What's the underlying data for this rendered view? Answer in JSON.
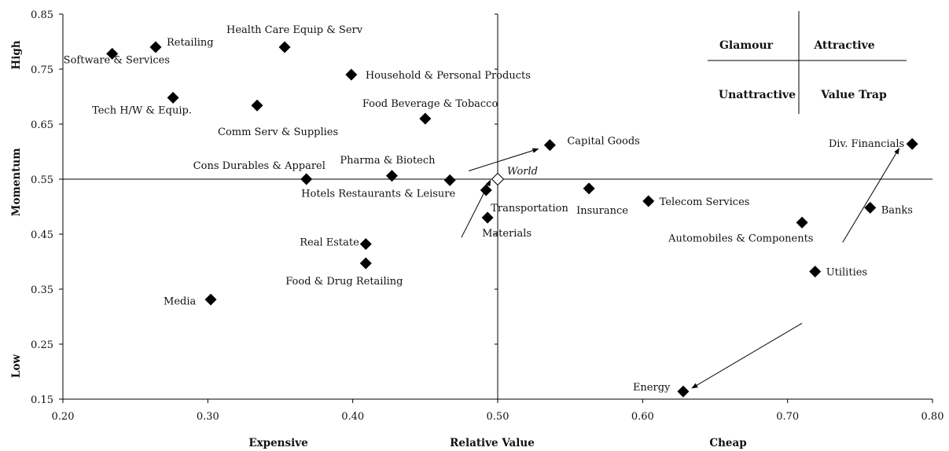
{
  "chart_data": {
    "type": "scatter",
    "xlim": [
      0.2,
      0.8
    ],
    "ylim": [
      0.15,
      0.85
    ],
    "x_ticks": [
      "0.20",
      "0.30",
      "0.40",
      "0.50",
      "0.60",
      "0.70",
      "0.80"
    ],
    "y_ticks": [
      "0.15",
      "0.25",
      "0.35",
      "0.45",
      "0.55",
      "0.65",
      "0.75",
      "0.85"
    ],
    "x_axis_words": {
      "left": "Expensive",
      "center": "Relative Value",
      "right": "Cheap"
    },
    "y_axis_words": {
      "top": "High",
      "center": "Momentum",
      "bottom": "Low"
    },
    "reference_lines": {
      "x": 0.5,
      "y": 0.55
    },
    "grid": false,
    "legend_box": {
      "top_left": "Glamour",
      "top_right": "Attractive",
      "bottom_left": "Unattractive",
      "bottom_right": "Value Trap"
    },
    "points": [
      {
        "label": "Software & Services",
        "x": 0.234,
        "y": 0.778
      },
      {
        "label": "Retailing",
        "x": 0.264,
        "y": 0.79
      },
      {
        "label": "Health Care Equip & Serv",
        "x": 0.353,
        "y": 0.79
      },
      {
        "label": "Household & Personal Products",
        "x": 0.399,
        "y": 0.74
      },
      {
        "label": "Tech H/W & Equip.",
        "x": 0.276,
        "y": 0.698
      },
      {
        "label": "Comm Serv & Supplies",
        "x": 0.334,
        "y": 0.684
      },
      {
        "label": "Food Beverage & Tobacco",
        "x": 0.45,
        "y": 0.66
      },
      {
        "label": "Capital Goods",
        "x": 0.536,
        "y": 0.612
      },
      {
        "label": "Div. Financials",
        "x": 0.786,
        "y": 0.614
      },
      {
        "label": "Pharma & Biotech",
        "x": 0.427,
        "y": 0.556
      },
      {
        "label": "Cons Durables & Apparel",
        "x": 0.368,
        "y": 0.55
      },
      {
        "label": "Hotels Restaurants & Leisure",
        "x": 0.467,
        "y": 0.548
      },
      {
        "label": "Transportation",
        "x": 0.492,
        "y": 0.53
      },
      {
        "label": "Insurance",
        "x": 0.563,
        "y": 0.533
      },
      {
        "label": "Telecom Services",
        "x": 0.604,
        "y": 0.51
      },
      {
        "label": "Materials",
        "x": 0.493,
        "y": 0.48
      },
      {
        "label": "Automobiles & Components",
        "x": 0.71,
        "y": 0.471
      },
      {
        "label": "Banks",
        "x": 0.757,
        "y": 0.498
      },
      {
        "label": "Real Estate",
        "x": 0.409,
        "y": 0.432
      },
      {
        "label": "Food & Drug Retailing",
        "x": 0.409,
        "y": 0.397
      },
      {
        "label": "Utilities",
        "x": 0.719,
        "y": 0.382
      },
      {
        "label": "Media",
        "x": 0.302,
        "y": 0.331
      },
      {
        "label": "Energy",
        "x": 0.628,
        "y": 0.164
      }
    ],
    "world_point": {
      "label": "World",
      "x": 0.5,
      "y": 0.55
    },
    "arrows": [
      {
        "from": [
          0.475,
          0.444
        ],
        "to": [
          0.495,
          0.548
        ],
        "target": "Transportation"
      },
      {
        "from": [
          0.48,
          0.565
        ],
        "to": [
          0.528,
          0.605
        ],
        "target": "Capital Goods"
      },
      {
        "from": [
          0.738,
          0.435
        ],
        "to": [
          0.777,
          0.606
        ],
        "target": "Div. Financials"
      },
      {
        "from": [
          0.71,
          0.288
        ],
        "to": [
          0.634,
          0.17
        ],
        "target": "Energy"
      }
    ]
  }
}
